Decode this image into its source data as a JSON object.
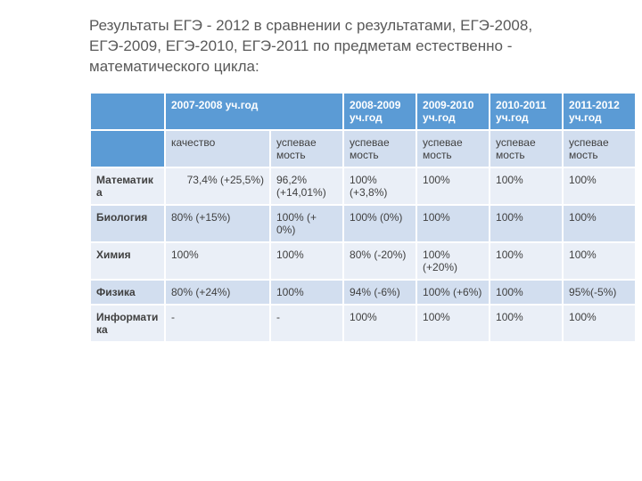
{
  "title": "Результаты ЕГЭ - 2012 в сравнении с результатами, ЕГЭ-2008, ЕГЭ-2009, ЕГЭ-2010, ЕГЭ-2011 по предметам естественно - математического цикла:",
  "table": {
    "type": "table",
    "background_color": "#ffffff",
    "header_bg": "#5b9bd5",
    "header_fg": "#ffffff",
    "band_light": "#eaeff7",
    "band_dark": "#d2deef",
    "border_color": "#ffffff",
    "font_size": 12,
    "years": [
      "2007-2008 уч.год",
      "2008-2009 уч.год",
      "2009-2010 уч.год",
      "2010-2011 уч.год",
      "2011-2012 уч.год"
    ],
    "subheaders": [
      "качество",
      "успевае мость",
      "успевае мость",
      "успевае мость",
      "успевае мость",
      "успевае мость"
    ],
    "rows": [
      {
        "subject": "Математика",
        "cells": [
          "73,4% (+25,5%)",
          "96,2% (+14,01%)",
          "100% (+3,8%)",
          "100%",
          "100%",
          "100%"
        ]
      },
      {
        "subject": "Биология",
        "cells": [
          "80% (+15%)",
          "100% (+ 0%)",
          "100% (0%)",
          "100%",
          "100%",
          "100%"
        ]
      },
      {
        "subject": "Химия",
        "cells": [
          "100%",
          "100%",
          "80% (-20%)",
          "100% (+20%)",
          "100%",
          "100%"
        ]
      },
      {
        "subject": "Физика",
        "cells": [
          "80% (+24%)",
          "100%",
          "94% (-6%)",
          "100% (+6%)",
          "100%",
          "95%(-5%)"
        ]
      },
      {
        "subject": "Информатика",
        "cells": [
          "-",
          "-",
          "100%",
          "100%",
          "100%",
          "100%"
        ]
      }
    ]
  }
}
